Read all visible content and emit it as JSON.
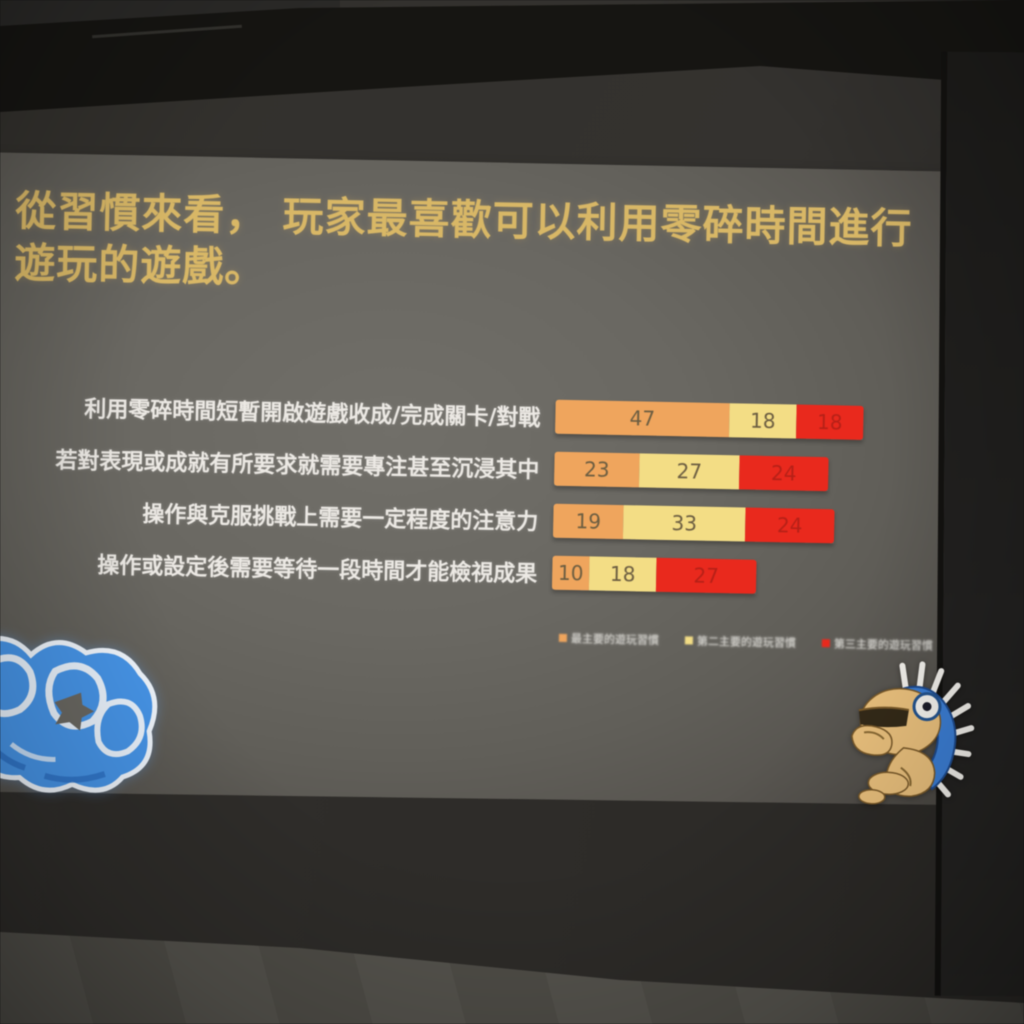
{
  "slide": {
    "title": "從習慣來看， 玩家最喜歡可以利用零碎時間進行遊玩的遊戲。",
    "title_color": "#d8b766",
    "background_color": "#6a6862"
  },
  "chart_data": {
    "type": "bar",
    "orientation": "horizontal",
    "stacked": true,
    "grid": false,
    "value_labels": true,
    "legend_position": "bottom",
    "categories": [
      "利用零碎時間短暫開啟遊戲收成/完成關卡/對戰",
      "若對表現或成就有所要求就需要專注甚至沉浸其中",
      "操作與克服挑戰上需要一定程度的注意力",
      "操作或設定後需要等待一段時間才能檢視成果"
    ],
    "series": [
      {
        "name": "最主要的遊玩習慣",
        "color": "#efa55d",
        "values": [
          47,
          23,
          19,
          10
        ]
      },
      {
        "name": "第二主要的遊玩習慣",
        "color": "#f3dd85",
        "values": [
          18,
          27,
          33,
          18
        ]
      },
      {
        "name": "第三主要的遊玩習慣",
        "color": "#e9291d",
        "values": [
          18,
          24,
          24,
          27
        ]
      }
    ]
  },
  "decorations": {
    "graffiti": "blue-bubble-graffiti-sticker",
    "mascot": "tan-creature-with-blue-mohawk"
  }
}
